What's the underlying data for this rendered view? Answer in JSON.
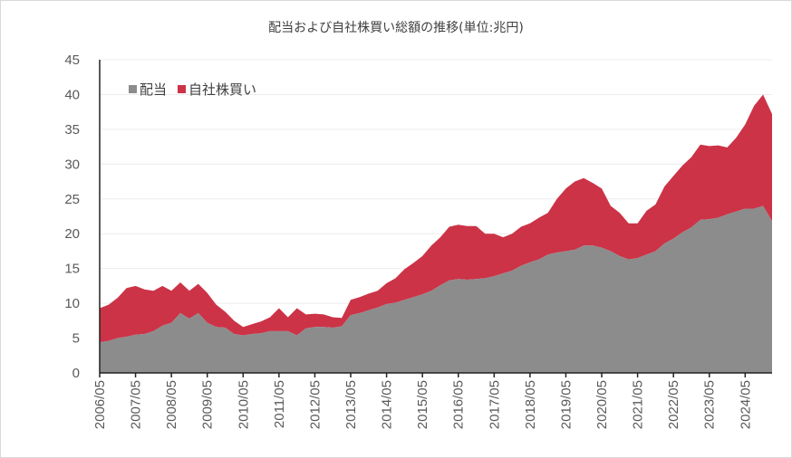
{
  "chart_data": {
    "type": "area",
    "stacked": true,
    "title": "配当および自社株買い総額の推移(単位:兆円)",
    "xlabel": "",
    "ylabel": "",
    "ylim": [
      0,
      45
    ],
    "yticks": [
      0,
      5,
      10,
      15,
      20,
      25,
      30,
      35,
      40,
      45
    ],
    "xticks": [
      "2006/05",
      "2007/05",
      "2008/05",
      "2009/05",
      "2010/05",
      "2011/05",
      "2012/05",
      "2013/05",
      "2014/05",
      "2015/05",
      "2016/05",
      "2017/05",
      "2018/05",
      "2019/05",
      "2020/05",
      "2021/05",
      "2022/05",
      "2023/05",
      "2024/05"
    ],
    "grid": true,
    "legend_position": "top-left",
    "x": [
      "2006/05",
      "2006/08",
      "2006/11",
      "2007/02",
      "2007/05",
      "2007/08",
      "2007/11",
      "2008/02",
      "2008/05",
      "2008/08",
      "2008/11",
      "2009/02",
      "2009/05",
      "2009/08",
      "2009/11",
      "2010/02",
      "2010/05",
      "2010/08",
      "2010/11",
      "2011/02",
      "2011/05",
      "2011/08",
      "2011/11",
      "2012/02",
      "2012/05",
      "2012/08",
      "2012/11",
      "2013/02",
      "2013/05",
      "2013/08",
      "2013/11",
      "2014/02",
      "2014/05",
      "2014/08",
      "2014/11",
      "2015/02",
      "2015/05",
      "2015/08",
      "2015/11",
      "2016/02",
      "2016/05",
      "2016/08",
      "2016/11",
      "2017/02",
      "2017/05",
      "2017/08",
      "2017/11",
      "2018/02",
      "2018/05",
      "2018/08",
      "2018/11",
      "2019/02",
      "2019/05",
      "2019/08",
      "2019/11",
      "2020/02",
      "2020/05",
      "2020/08",
      "2020/11",
      "2021/02",
      "2021/05",
      "2021/08",
      "2021/11",
      "2022/02",
      "2022/05",
      "2022/08",
      "2022/11",
      "2023/02",
      "2023/05",
      "2023/08",
      "2023/11",
      "2024/02",
      "2024/05",
      "2024/08",
      "2024/11",
      "2025/02"
    ],
    "series": [
      {
        "name": "配当",
        "color": "#8c8c8c",
        "values": [
          4.4,
          4.6,
          5.0,
          5.2,
          5.5,
          5.6,
          6.0,
          6.8,
          7.2,
          8.6,
          7.8,
          8.6,
          7.2,
          6.6,
          6.5,
          5.6,
          5.4,
          5.6,
          5.7,
          6.0,
          6.0,
          6.0,
          5.4,
          6.4,
          6.6,
          6.6,
          6.5,
          6.7,
          8.3,
          8.6,
          9.0,
          9.4,
          9.9,
          10.1,
          10.5,
          10.9,
          11.3,
          11.8,
          12.6,
          13.3,
          13.5,
          13.4,
          13.5,
          13.6,
          13.9,
          14.3,
          14.7,
          15.4,
          15.9,
          16.3,
          17.0,
          17.3,
          17.5,
          17.7,
          18.3,
          18.3,
          18.0,
          17.5,
          16.8,
          16.3,
          16.5,
          17.0,
          17.5,
          18.6,
          19.3,
          20.2,
          20.9,
          22.0,
          22.1,
          22.3,
          22.8,
          23.2,
          23.6,
          23.6,
          24.0,
          21.8
        ]
      },
      {
        "name": "自社株買い",
        "color": "#cc3347",
        "values": [
          4.9,
          5.2,
          5.8,
          7.0,
          7.0,
          6.4,
          5.8,
          5.7,
          4.6,
          4.4,
          4.0,
          4.2,
          4.3,
          3.2,
          2.3,
          1.9,
          1.2,
          1.4,
          1.7,
          2.0,
          3.3,
          2.0,
          3.9,
          2.0,
          1.9,
          1.8,
          1.5,
          1.2,
          2.2,
          2.3,
          2.4,
          2.4,
          3.0,
          3.5,
          4.4,
          4.9,
          5.5,
          6.5,
          6.9,
          7.7,
          7.8,
          7.7,
          7.6,
          6.4,
          6.1,
          5.2,
          5.3,
          5.6,
          5.6,
          6.0,
          6.0,
          7.7,
          9.0,
          9.8,
          9.7,
          9.0,
          8.5,
          6.5,
          6.2,
          5.2,
          5.0,
          6.3,
          6.7,
          8.2,
          9.0,
          9.6,
          10.1,
          10.8,
          10.5,
          10.4,
          9.6,
          10.6,
          12.1,
          14.8,
          16.0,
          15.4
        ]
      }
    ]
  }
}
